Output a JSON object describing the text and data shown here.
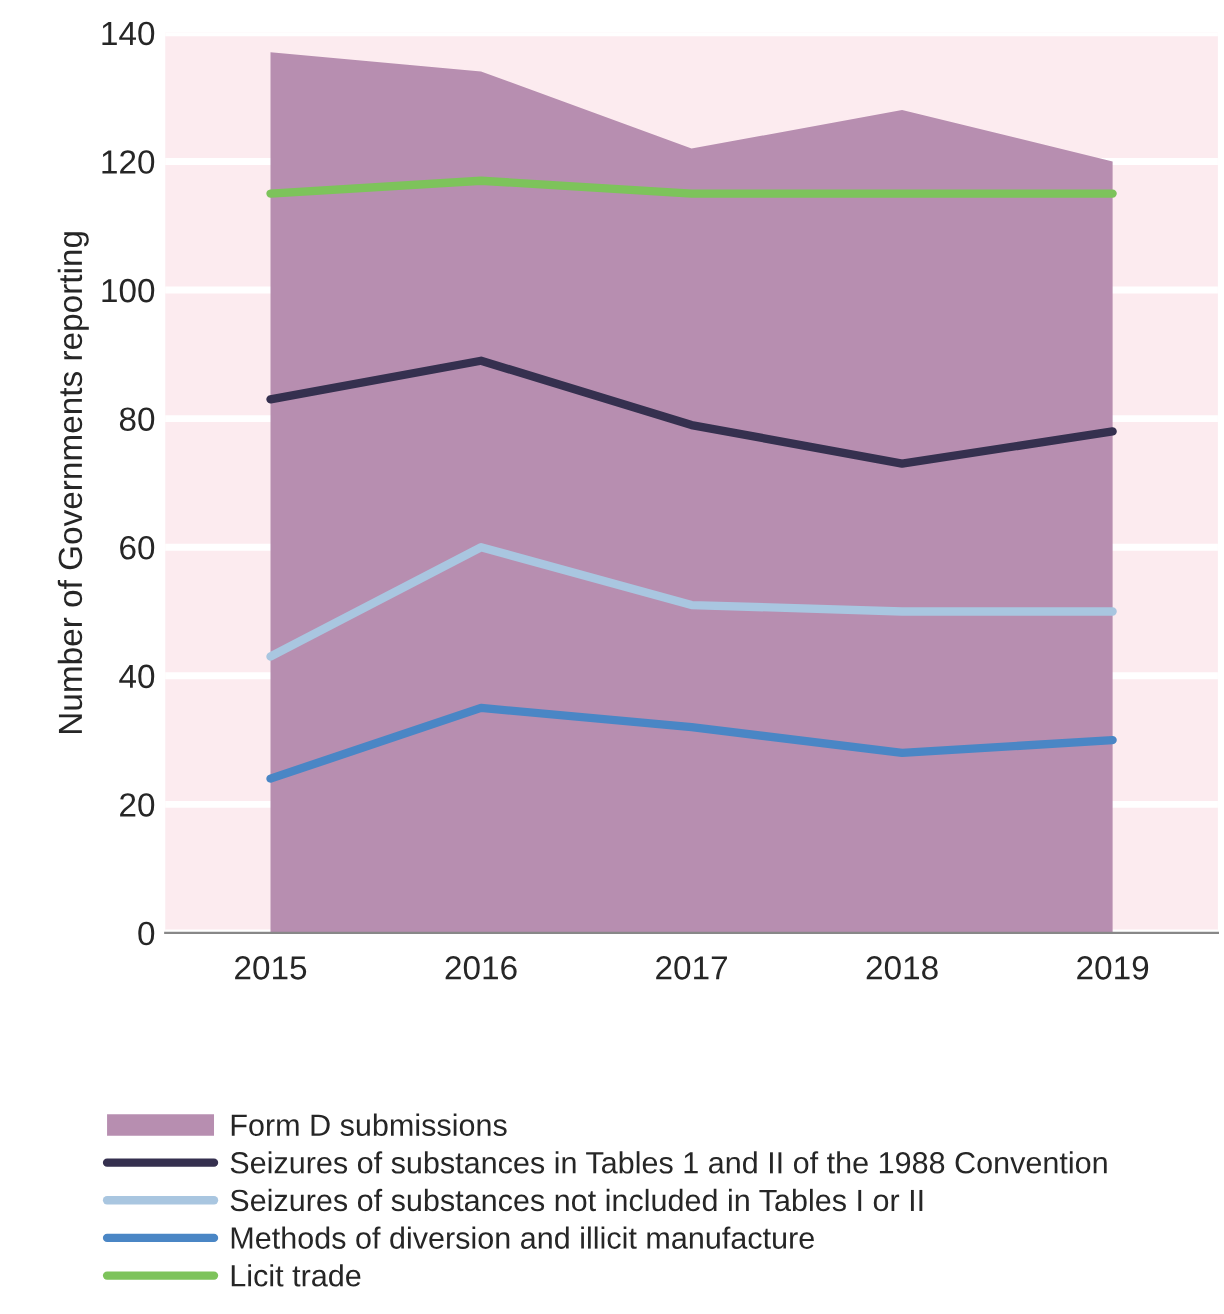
{
  "chart_data": {
    "type": "line",
    "ylabel": "Number of Governments reporting",
    "categories": [
      "2015",
      "2016",
      "2017",
      "2018",
      "2019"
    ],
    "series": [
      {
        "name": "Form D submissions",
        "type": "area",
        "color": "#b78eb0",
        "values": [
          137,
          134,
          122,
          128,
          120
        ]
      },
      {
        "name": "Seizures of substances in Tables 1 and II of the 1988 Convention",
        "color": "#35304f",
        "values": [
          83,
          89,
          79,
          73,
          78
        ]
      },
      {
        "name": "Seizures of substances not included in Tables I or II",
        "color": "#a9c6e0",
        "values": [
          43,
          60,
          51,
          50,
          50
        ]
      },
      {
        "name": "Methods of diversion and illicit manufacture",
        "color": "#4a86c5",
        "values": [
          24,
          35,
          32,
          28,
          30
        ]
      },
      {
        "name": "Licit trade",
        "color": "#7dc35b",
        "values": [
          115,
          117,
          115,
          115,
          115
        ]
      }
    ],
    "ylim": [
      0,
      140
    ],
    "yticks": [
      0,
      20,
      40,
      60,
      80,
      100,
      120,
      140
    ],
    "grid": "y",
    "legend": "bottom",
    "line_style": "solid",
    "marker": "none"
  }
}
